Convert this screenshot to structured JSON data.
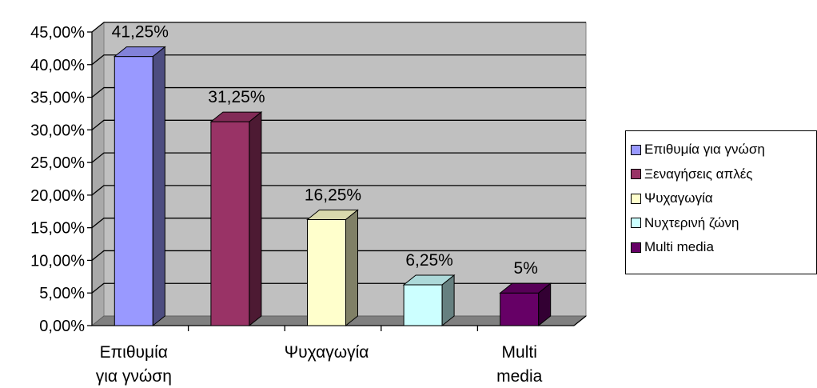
{
  "chart_data": {
    "type": "bar",
    "categories": [
      "Επιθυμία για γνώση",
      "Ξεναγήσεις απλές",
      "Ψυχαγωγία",
      "Νυχτερινή ζώνη",
      "Multi media"
    ],
    "values": [
      41.25,
      31.25,
      16.25,
      6.25,
      5
    ],
    "data_labels": [
      "41,25%",
      "31,25%",
      "16,25%",
      "6,25%",
      "5%"
    ],
    "colors": [
      "#9999ff",
      "#993366",
      "#ffffcc",
      "#ccffff",
      "#660066"
    ],
    "ylim": [
      0,
      45
    ],
    "y_ticks": [
      0,
      5,
      10,
      15,
      20,
      25,
      30,
      35,
      40,
      45
    ],
    "y_tick_labels": [
      "0,00%",
      "5,00%",
      "10,00%",
      "15,00%",
      "20,00%",
      "25,00%",
      "30,00%",
      "35,00%",
      "40,00%",
      "45,00%"
    ],
    "x_tick_labels": [
      [
        "Επιθυμία",
        "για γνώση"
      ],
      [],
      [
        "Ψυχαγωγία"
      ],
      [],
      [
        "Multi",
        "media"
      ]
    ],
    "grid": true,
    "plot_background": "#c0c0c0",
    "legend_position": "right",
    "legend": [
      "Επιθυμία για γνώση",
      "Ξεναγήσεις απλές",
      "Ψυχαγωγία",
      "Νυχτερινή ζώνη",
      "Multi media"
    ]
  }
}
